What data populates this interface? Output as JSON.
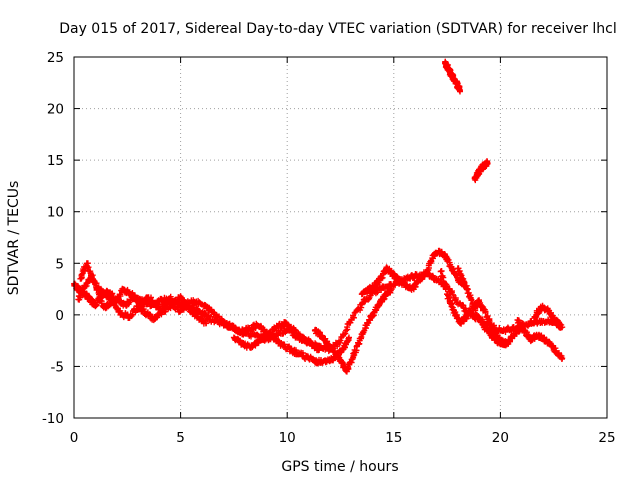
{
  "chart_data": {
    "type": "scatter",
    "title": "Day 015 of 2017, Sidereal Day-to-day VTEC variation (SDTVAR) for receiver lhcl",
    "xlabel": "GPS time / hours",
    "ylabel": "SDTVAR / TECUs",
    "xlim": [
      0,
      25
    ],
    "ylim": [
      -10,
      25
    ],
    "xticks": [
      0,
      5,
      10,
      15,
      20,
      25
    ],
    "yticks": [
      -10,
      -5,
      0,
      5,
      10,
      15,
      20,
      25
    ],
    "grid": true,
    "marker": "+",
    "color": "#ff0000",
    "series": [
      {
        "name": "SDTVAR",
        "tracks": [
          {
            "x": [
              0.0,
              0.2,
              0.4,
              0.6,
              0.8,
              1.0,
              1.3,
              1.6,
              2.0,
              2.4,
              2.8,
              3.2,
              3.6,
              4.0,
              4.5,
              5.0,
              5.5,
              6.0,
              6.5,
              7.0,
              7.5,
              8.0,
              8.5,
              9.0,
              9.5,
              10.0,
              10.5,
              11.0,
              11.5,
              12.0,
              12.5,
              13.0,
              13.5,
              14.0,
              14.5,
              15.0,
              15.5,
              16.0,
              16.5,
              17.0,
              17.5,
              18.0,
              18.5,
              19.0,
              19.5,
              20.0,
              20.5,
              21.0,
              21.5,
              22.0,
              22.5,
              22.9
            ],
            "y": [
              3.0,
              2.5,
              2.2,
              1.8,
              1.4,
              1.0,
              1.8,
              2.2,
              1.5,
              1.0,
              1.7,
              1.4,
              1.0,
              1.3,
              1.6,
              1.0,
              0.7,
              0.2,
              -0.5,
              -0.8,
              -1.3,
              -1.8,
              -2.0,
              -2.4,
              -1.8,
              -1.5,
              -2.2,
              -2.7,
              -3.0,
              -3.4,
              -2.5,
              -0.5,
              1.0,
              2.2,
              2.6,
              3.0,
              3.5,
              3.8,
              4.0,
              3.5,
              2.8,
              1.2,
              0.2,
              -0.4,
              -1.0,
              -1.5,
              -1.4,
              -1.0,
              -0.8,
              -0.6,
              -0.7,
              -1.2
            ]
          },
          {
            "x": [
              0.2,
              0.5,
              0.8,
              1.1,
              1.5,
              1.9,
              2.3,
              2.7,
              3.1,
              3.5,
              4.0,
              4.5,
              5.0,
              5.5,
              6.0,
              6.5,
              7.0
            ],
            "y": [
              1.5,
              2.8,
              3.8,
              2.6,
              1.9,
              1.2,
              2.5,
              2.0,
              0.8,
              1.7,
              0.6,
              1.2,
              0.4,
              1.4,
              1.0,
              0.3,
              -0.6
            ]
          },
          {
            "x": [
              0.3,
              0.6,
              1.0,
              1.4,
              1.8,
              2.2,
              2.6,
              3.0,
              3.4,
              3.8,
              4.2,
              4.6,
              5.0,
              5.4,
              5.8,
              6.2
            ],
            "y": [
              3.5,
              5.0,
              3.0,
              0.7,
              1.2,
              0.1,
              -0.2,
              0.8,
              0.1,
              -0.4,
              0.4,
              0.9,
              1.8,
              0.5,
              -0.2,
              -0.8
            ]
          },
          {
            "x": [
              7.0,
              7.4,
              7.8,
              8.2,
              8.6,
              9.0,
              9.4,
              9.8,
              10.2,
              10.6,
              11.0,
              11.4,
              11.8,
              12.2,
              12.6,
              12.9
            ],
            "y": [
              -0.8,
              -1.2,
              -1.6,
              -1.4,
              -1.0,
              -1.7,
              -2.4,
              -3.0,
              -3.4,
              -3.8,
              -4.2,
              -4.5,
              -4.6,
              -4.2,
              -3.3,
              -2.2
            ]
          },
          {
            "x": [
              7.5,
              7.9,
              8.3,
              8.7,
              9.1,
              9.5,
              9.9,
              10.3,
              10.7,
              11.1,
              11.5
            ],
            "y": [
              -2.2,
              -2.8,
              -3.2,
              -2.5,
              -2.0,
              -1.2,
              -0.8,
              -1.5,
              -2.2,
              -2.7,
              -3.4
            ]
          },
          {
            "x": [
              11.3,
              11.6,
              11.9,
              12.2,
              12.5,
              12.8,
              13.1,
              13.4,
              13.7,
              14.0,
              14.3,
              14.6,
              14.9
            ],
            "y": [
              -1.5,
              -2.0,
              -2.8,
              -3.5,
              -4.5,
              -5.5,
              -4.0,
              -2.5,
              -1.0,
              0.0,
              1.0,
              1.8,
              2.5
            ]
          },
          {
            "x": [
              13.5,
              13.8,
              14.1,
              14.4,
              14.7,
              15.0,
              15.3,
              15.6,
              15.9,
              16.2,
              16.5,
              16.8,
              17.1,
              17.4,
              17.7,
              18.0,
              18.3
            ],
            "y": [
              2.0,
              2.4,
              2.8,
              3.6,
              4.5,
              3.8,
              3.2,
              2.8,
              2.6,
              3.4,
              4.0,
              5.5,
              6.2,
              5.8,
              4.6,
              3.5,
              2.8
            ]
          },
          {
            "x": [
              17.2,
              17.5,
              17.8,
              18.1,
              18.4,
              18.7,
              19.0,
              19.3,
              19.6,
              19.9,
              20.2
            ],
            "y": [
              4.2,
              2.0,
              0.5,
              -0.8,
              -0.2,
              0.8,
              1.3,
              0.2,
              -1.2,
              -2.3,
              -2.8
            ]
          },
          {
            "x": [
              18.0,
              18.3,
              18.6,
              18.9,
              19.2,
              19.5,
              19.8,
              20.1,
              20.4,
              20.7,
              21.0
            ],
            "y": [
              4.5,
              3.2,
              1.6,
              0.0,
              -1.0,
              -1.8,
              -2.4,
              -2.9,
              -2.6,
              -1.8,
              -1.2
            ]
          },
          {
            "x": [
              20.8,
              21.1,
              21.4,
              21.7,
              22.0,
              22.3,
              22.6,
              22.9
            ],
            "y": [
              -0.5,
              -1.5,
              -2.4,
              -2.0,
              -2.2,
              -2.8,
              -3.5,
              -4.2
            ]
          },
          {
            "x": [
              21.6,
              21.9,
              22.2,
              22.5,
              22.8
            ],
            "y": [
              -0.3,
              0.8,
              0.5,
              -0.4,
              -0.9
            ]
          },
          {
            "x": [
              17.4,
              17.5,
              17.6,
              17.7,
              17.8,
              17.9,
              18.0,
              18.1
            ],
            "y": [
              24.4,
              24.1,
              23.7,
              23.3,
              22.9,
              22.6,
              22.2,
              21.8
            ]
          },
          {
            "x": [
              18.8,
              18.9,
              19.0,
              19.1,
              19.2,
              19.3,
              19.4
            ],
            "y": [
              13.2,
              13.6,
              13.9,
              14.2,
              14.4,
              14.6,
              14.7
            ]
          }
        ]
      }
    ]
  }
}
